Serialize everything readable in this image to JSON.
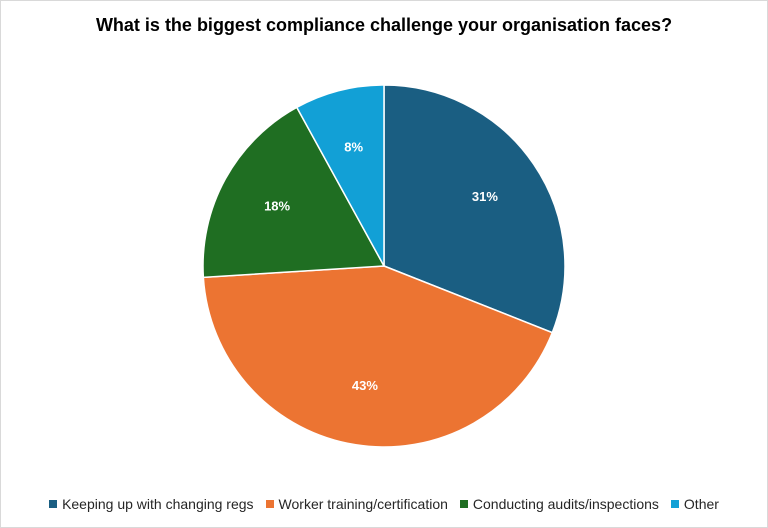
{
  "chart_data": {
    "type": "pie",
    "title": "What is the biggest compliance challenge your organisation faces?",
    "categories": [
      "Keeping up with changing regs",
      "Worker training/certification",
      "Conducting audits/inspections",
      "Other"
    ],
    "values": [
      31,
      43,
      18,
      8
    ],
    "labels": [
      "31%",
      "43%",
      "18%",
      "8%"
    ],
    "colors": [
      "#1a5e82",
      "#ec7432",
      "#1f6e22",
      "#12a0d6"
    ],
    "legend_position": "bottom",
    "start_angle": "top, clockwise"
  }
}
